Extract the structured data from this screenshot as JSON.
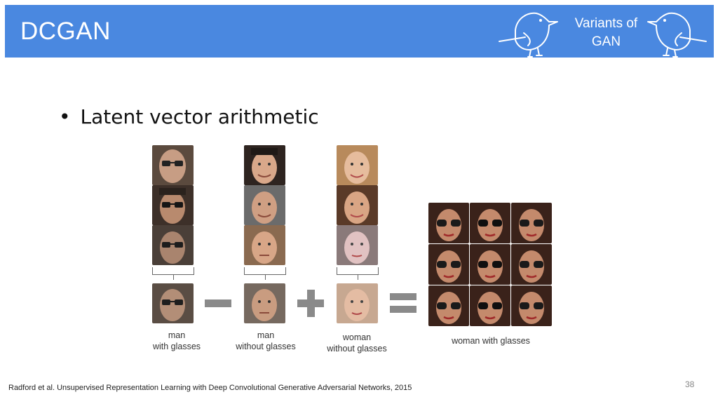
{
  "header": {
    "title": "DCGAN",
    "tag_line1": "Variants of",
    "tag_line2": "GAN",
    "color": "#4a88e0"
  },
  "content": {
    "bullet": "Latent vector arithmetic",
    "captions": {
      "col1_line1": "man",
      "col1_line2": "with glasses",
      "col2_line1": "man",
      "col2_line2": "without glasses",
      "col3_line1": "woman",
      "col3_line2": "without glasses",
      "result": "woman with glasses"
    },
    "operators": [
      "minus",
      "plus",
      "equals"
    ]
  },
  "footer": {
    "citation": "Radford et al. Unsupervised Representation Learning with Deep Convolutional Generative Adversarial Networks, 2015",
    "page_number": "38"
  }
}
